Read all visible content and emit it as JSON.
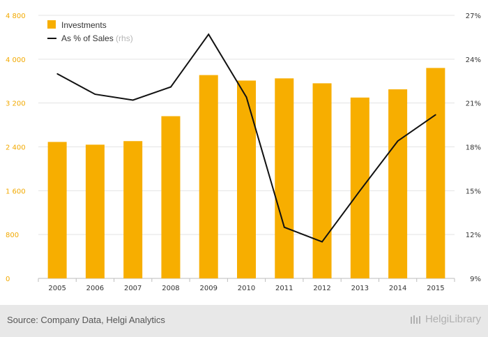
{
  "chart_data": {
    "type": "bar",
    "categories": [
      "2005",
      "2006",
      "2007",
      "2008",
      "2009",
      "2010",
      "2011",
      "2012",
      "2013",
      "2014",
      "2015"
    ],
    "series": [
      {
        "name": "Investments",
        "type": "bar",
        "axis": "left",
        "values": [
          2490,
          2440,
          2505,
          2960,
          3710,
          3610,
          3650,
          3560,
          3300,
          3450,
          3840
        ]
      },
      {
        "name": "As % of Sales",
        "type": "line",
        "axis": "right",
        "values": [
          23.0,
          21.6,
          21.2,
          22.1,
          25.7,
          21.4,
          12.5,
          11.5,
          15.0,
          18.4,
          20.2
        ]
      }
    ],
    "left_axis": {
      "ticks": [
        "0",
        "800",
        "1 600",
        "2 400",
        "3 200",
        "4 000",
        "4 800"
      ],
      "min": 0,
      "max": 4800
    },
    "right_axis": {
      "ticks": [
        "9%",
        "12%",
        "15%",
        "18%",
        "21%",
        "24%",
        "27%"
      ],
      "min": 9,
      "max": 27
    },
    "legend": {
      "placement": "top-left",
      "items": [
        {
          "label": "Investments",
          "color": "#f7ae00"
        },
        {
          "label": "As % of Sales",
          "suffix": " (rhs)",
          "color": "#111111"
        }
      ]
    },
    "grid": true
  },
  "colors": {
    "bar": "#f7ae00",
    "line": "#111111",
    "left_ticks": "#f2a900",
    "footer_bg": "#e8e8e8"
  },
  "footer": {
    "source": "Source: Company Data, Helgi Analytics",
    "logo": "HelgiLibrary"
  }
}
